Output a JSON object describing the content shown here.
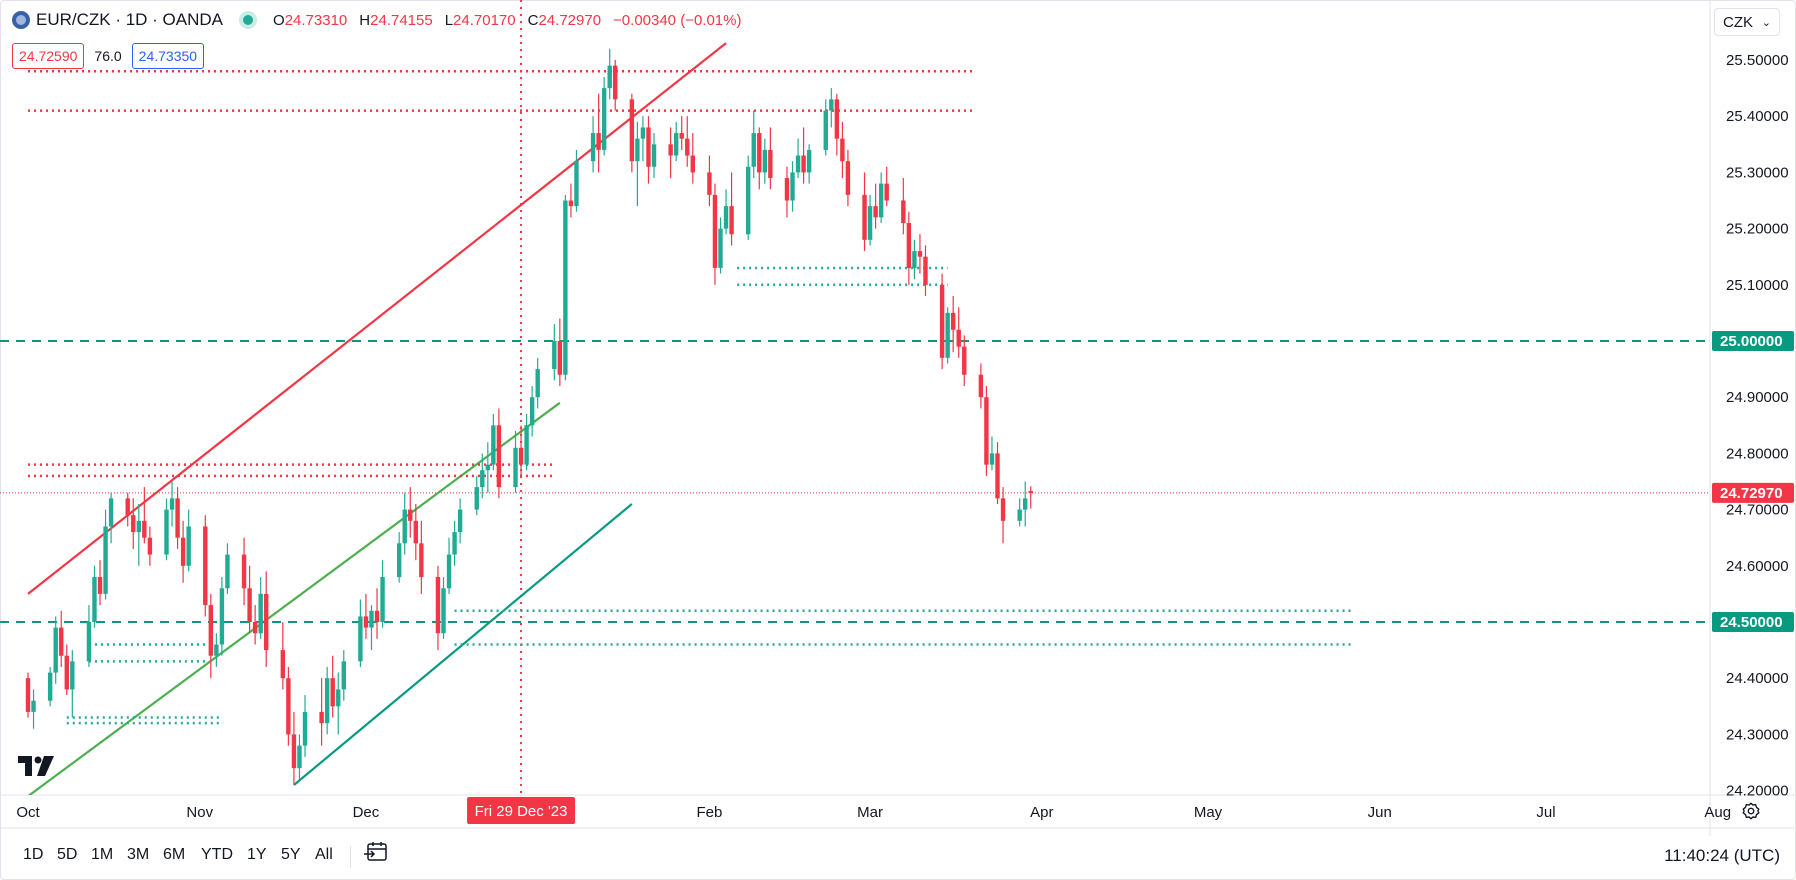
{
  "symbol": {
    "title": "EUR/CZK · 1D · OANDA",
    "icon": "globe-icon",
    "ohlc": [
      {
        "k": "O",
        "v": "24.73310"
      },
      {
        "k": "H",
        "v": "24.74155"
      },
      {
        "k": "L",
        "v": "24.70170"
      },
      {
        "k": "C",
        "v": "24.72970"
      }
    ],
    "change": "−0.00340 (−0.01%)"
  },
  "quote": {
    "bid": "24.72590",
    "spread": "76.0",
    "ask": "24.73350"
  },
  "currency": "CZK",
  "bottom_bar": {
    "ranges": [
      "1D",
      "5D",
      "1M",
      "3M",
      "6M",
      "YTD",
      "1Y",
      "5Y",
      "All"
    ],
    "time": "11:40:24 (UTC)"
  },
  "colors": {
    "up": "#22ab94",
    "down": "#f23645",
    "channel_green": "#4caf50",
    "teal": "#089981",
    "red_line": "#f23645"
  },
  "chart_data": {
    "type": "candlestick",
    "price_axis": {
      "ticks": [
        "25.50000",
        "25.40000",
        "25.30000",
        "25.20000",
        "25.10000",
        "25.00000",
        "24.90000",
        "24.80000",
        "24.70000",
        "24.60000",
        "24.50000",
        "24.40000",
        "24.30000",
        "24.20000"
      ],
      "ylim": [
        24.19,
        25.55
      ],
      "labels": [
        {
          "value": 25.0,
          "text": "25.00000",
          "color": "#089981"
        },
        {
          "value": 24.7297,
          "text": "24.72970",
          "color": "#f23645"
        },
        {
          "value": 24.5,
          "text": "24.50000",
          "color": "#089981"
        }
      ]
    },
    "time_axis": {
      "labels": [
        {
          "text": "Oct",
          "day": 0
        },
        {
          "text": "Nov",
          "day": 31
        },
        {
          "text": "Dec",
          "day": 61
        },
        {
          "text": "Feb",
          "day": 123
        },
        {
          "text": "Mar",
          "day": 152
        },
        {
          "text": "Apr",
          "day": 183
        },
        {
          "text": "May",
          "day": 213
        },
        {
          "text": "Jun",
          "day": 244
        },
        {
          "text": "Jul",
          "day": 274
        },
        {
          "text": "Aug",
          "day": 305
        }
      ],
      "crosshair_label": "Fri 29 Dec '23",
      "crosshair_day": 89
    },
    "candles": [
      [
        0,
        24.4,
        24.41,
        24.33,
        24.34
      ],
      [
        1,
        24.34,
        24.38,
        24.31,
        24.36
      ],
      [
        4,
        24.36,
        24.42,
        24.35,
        24.41
      ],
      [
        5,
        24.41,
        24.51,
        24.39,
        24.49
      ],
      [
        6,
        24.49,
        24.52,
        24.42,
        24.44
      ],
      [
        7,
        24.44,
        24.46,
        24.37,
        24.38
      ],
      [
        8,
        24.38,
        24.45,
        24.33,
        24.43
      ],
      [
        11,
        24.43,
        24.53,
        24.42,
        24.5
      ],
      [
        12,
        24.5,
        24.6,
        24.49,
        24.58
      ],
      [
        13,
        24.58,
        24.61,
        24.53,
        24.55
      ],
      [
        14,
        24.55,
        24.7,
        24.54,
        24.67
      ],
      [
        15,
        24.67,
        24.73,
        24.64,
        24.72
      ],
      [
        18,
        24.72,
        24.73,
        24.67,
        24.69
      ],
      [
        19,
        24.69,
        24.72,
        24.63,
        24.66
      ],
      [
        20,
        24.66,
        24.71,
        24.6,
        24.68
      ],
      [
        21,
        24.68,
        24.74,
        24.64,
        24.65
      ],
      [
        22,
        24.65,
        24.67,
        24.6,
        24.62
      ],
      [
        25,
        24.62,
        24.72,
        24.61,
        24.7
      ],
      [
        26,
        24.7,
        24.75,
        24.67,
        24.72
      ],
      [
        27,
        24.72,
        24.74,
        24.63,
        24.65
      ],
      [
        28,
        24.65,
        24.68,
        24.57,
        24.6
      ],
      [
        29,
        24.6,
        24.7,
        24.59,
        24.67
      ],
      [
        32,
        24.67,
        24.69,
        24.51,
        24.53
      ],
      [
        33,
        24.53,
        24.55,
        24.4,
        24.44
      ],
      [
        34,
        24.44,
        24.48,
        24.42,
        24.46
      ],
      [
        35,
        24.46,
        24.58,
        24.44,
        24.56
      ],
      [
        36,
        24.56,
        24.64,
        24.55,
        24.62
      ],
      [
        39,
        24.62,
        24.65,
        24.53,
        24.56
      ],
      [
        40,
        24.56,
        24.6,
        24.48,
        24.5
      ],
      [
        41,
        24.5,
        24.53,
        24.46,
        24.48
      ],
      [
        42,
        24.48,
        24.58,
        24.47,
        24.55
      ],
      [
        43,
        24.55,
        24.59,
        24.42,
        24.45
      ],
      [
        46,
        24.45,
        24.5,
        24.38,
        24.4
      ],
      [
        47,
        24.4,
        24.42,
        24.28,
        24.3
      ],
      [
        48,
        24.3,
        24.34,
        24.21,
        24.24
      ],
      [
        49,
        24.24,
        24.3,
        24.22,
        24.28
      ],
      [
        50,
        24.28,
        24.37,
        24.26,
        24.34
      ],
      [
        53,
        24.34,
        24.4,
        24.28,
        24.32
      ],
      [
        54,
        24.32,
        24.42,
        24.3,
        24.4
      ],
      [
        55,
        24.4,
        24.44,
        24.33,
        24.35
      ],
      [
        56,
        24.35,
        24.41,
        24.3,
        24.38
      ],
      [
        57,
        24.38,
        24.45,
        24.36,
        24.43
      ],
      [
        60,
        24.43,
        24.54,
        24.42,
        24.51
      ],
      [
        61,
        24.51,
        24.55,
        24.47,
        24.49
      ],
      [
        62,
        24.49,
        24.53,
        24.45,
        24.52
      ],
      [
        63,
        24.52,
        24.56,
        24.47,
        24.5
      ],
      [
        64,
        24.5,
        24.61,
        24.49,
        24.58
      ],
      [
        67,
        24.58,
        24.66,
        24.57,
        24.64
      ],
      [
        68,
        24.64,
        24.73,
        24.62,
        24.7
      ],
      [
        69,
        24.7,
        24.74,
        24.65,
        24.68
      ],
      [
        70,
        24.68,
        24.71,
        24.61,
        24.64
      ],
      [
        71,
        24.64,
        24.68,
        24.55,
        24.58
      ],
      [
        74,
        24.58,
        24.6,
        24.45,
        24.48
      ],
      [
        75,
        24.48,
        24.58,
        24.47,
        24.56
      ],
      [
        76,
        24.56,
        24.65,
        24.55,
        24.62
      ],
      [
        77,
        24.62,
        24.68,
        24.6,
        24.66
      ],
      [
        78,
        24.66,
        24.72,
        24.64,
        24.7
      ],
      [
        81,
        24.7,
        24.76,
        24.69,
        24.74
      ],
      [
        82,
        24.74,
        24.8,
        24.72,
        24.77
      ],
      [
        83,
        24.77,
        24.82,
        24.73,
        24.78
      ],
      [
        84,
        24.78,
        24.87,
        24.77,
        24.85
      ],
      [
        85,
        24.85,
        24.88,
        24.72,
        24.74
      ],
      [
        88,
        24.74,
        24.84,
        24.73,
        24.81
      ],
      [
        89,
        24.81,
        24.85,
        24.76,
        24.78
      ],
      [
        90,
        24.78,
        24.87,
        24.77,
        24.85
      ],
      [
        91,
        24.85,
        24.92,
        24.83,
        24.9
      ],
      [
        92,
        24.9,
        24.97,
        24.88,
        24.95
      ],
      [
        95,
        24.95,
        25.03,
        24.93,
        25.0
      ],
      [
        96,
        25.0,
        25.04,
        24.92,
        24.94
      ],
      [
        97,
        24.94,
        25.26,
        24.93,
        25.25
      ],
      [
        98,
        25.25,
        25.28,
        25.22,
        25.24
      ],
      [
        99,
        25.24,
        25.34,
        25.23,
        25.32
      ],
      [
        102,
        25.32,
        25.4,
        25.3,
        25.37
      ],
      [
        103,
        25.37,
        25.44,
        25.3,
        25.34
      ],
      [
        104,
        25.34,
        25.47,
        25.33,
        25.45
      ],
      [
        105,
        25.45,
        25.52,
        25.43,
        25.49
      ],
      [
        106,
        25.49,
        25.5,
        25.41,
        25.43
      ],
      [
        109,
        25.43,
        25.44,
        25.3,
        25.32
      ],
      [
        110,
        25.32,
        25.39,
        25.24,
        25.36
      ],
      [
        111,
        25.36,
        25.4,
        25.32,
        25.38
      ],
      [
        112,
        25.38,
        25.4,
        25.28,
        25.31
      ],
      [
        113,
        25.31,
        25.37,
        25.29,
        25.35
      ],
      [
        116,
        25.35,
        25.38,
        25.29,
        25.33
      ],
      [
        117,
        25.33,
        25.39,
        25.32,
        25.37
      ],
      [
        118,
        25.37,
        25.4,
        25.34,
        25.36
      ],
      [
        119,
        25.36,
        25.4,
        25.31,
        25.33
      ],
      [
        120,
        25.33,
        25.37,
        25.28,
        25.3
      ],
      [
        123,
        25.3,
        25.33,
        25.24,
        25.26
      ],
      [
        124,
        25.26,
        25.28,
        25.1,
        25.13
      ],
      [
        125,
        25.13,
        25.22,
        25.12,
        25.2
      ],
      [
        126,
        25.2,
        25.27,
        25.19,
        25.24
      ],
      [
        127,
        25.24,
        25.3,
        25.17,
        25.19
      ],
      [
        130,
        25.19,
        25.33,
        25.18,
        25.31
      ],
      [
        131,
        25.31,
        25.41,
        25.29,
        25.37
      ],
      [
        132,
        25.37,
        25.38,
        25.27,
        25.3
      ],
      [
        133,
        25.3,
        25.36,
        25.28,
        25.34
      ],
      [
        134,
        25.34,
        25.38,
        25.27,
        25.29
      ],
      [
        137,
        25.29,
        25.31,
        25.22,
        25.25
      ],
      [
        138,
        25.25,
        25.32,
        25.23,
        25.3
      ],
      [
        139,
        25.3,
        25.36,
        25.29,
        25.33
      ],
      [
        140,
        25.33,
        25.38,
        25.28,
        25.3
      ],
      [
        141,
        25.3,
        25.35,
        25.28,
        25.34
      ],
      [
        144,
        25.34,
        25.43,
        25.33,
        25.41
      ],
      [
        145,
        25.41,
        25.45,
        25.38,
        25.43
      ],
      [
        146,
        25.43,
        25.44,
        25.33,
        25.36
      ],
      [
        147,
        25.36,
        25.39,
        25.29,
        25.32
      ],
      [
        148,
        25.32,
        25.34,
        25.24,
        25.26
      ],
      [
        151,
        25.26,
        25.3,
        25.16,
        25.18
      ],
      [
        152,
        25.18,
        25.26,
        25.17,
        25.24
      ],
      [
        153,
        25.24,
        25.28,
        25.2,
        25.22
      ],
      [
        154,
        25.22,
        25.3,
        25.21,
        25.28
      ],
      [
        155,
        25.28,
        25.31,
        25.24,
        25.25
      ],
      [
        158,
        25.25,
        25.29,
        25.19,
        25.21
      ],
      [
        159,
        25.21,
        25.23,
        25.1,
        25.13
      ],
      [
        160,
        25.13,
        25.18,
        25.11,
        25.16
      ],
      [
        161,
        25.16,
        25.19,
        25.12,
        25.15
      ],
      [
        162,
        25.15,
        25.17,
        25.08,
        25.1
      ],
      [
        165,
        25.1,
        25.12,
        24.95,
        24.97
      ],
      [
        166,
        24.97,
        25.06,
        24.96,
        25.05
      ],
      [
        167,
        25.05,
        25.08,
        24.98,
        25.02
      ],
      [
        168,
        25.02,
        25.06,
        24.97,
        24.99
      ],
      [
        169,
        24.99,
        25.01,
        24.92,
        24.94
      ],
      [
        172,
        24.94,
        24.96,
        24.88,
        24.9
      ],
      [
        173,
        24.9,
        24.92,
        24.76,
        24.78
      ],
      [
        174,
        24.78,
        24.83,
        24.77,
        24.8
      ],
      [
        175,
        24.8,
        24.82,
        24.71,
        24.72
      ],
      [
        176,
        24.72,
        24.74,
        24.64,
        24.68
      ],
      [
        179,
        24.68,
        24.72,
        24.67,
        24.7
      ],
      [
        180,
        24.7,
        24.75,
        24.67,
        24.72
      ],
      [
        181,
        24.7331,
        24.74155,
        24.7017,
        24.7297
      ]
    ],
    "lines": [
      {
        "type": "trendline",
        "color": "#f23645",
        "from": [
          0,
          24.55
        ],
        "to": [
          126,
          25.53
        ]
      },
      {
        "type": "trendline",
        "color": "#4caf50",
        "from": [
          0,
          24.19
        ],
        "to": [
          96,
          24.89
        ]
      },
      {
        "type": "trendline",
        "color": "#089981",
        "from": [
          48,
          24.21
        ],
        "to": [
          109,
          24.71
        ]
      },
      {
        "type": "horizontal",
        "style": "dashed",
        "color": "#089981",
        "value": 25.0
      },
      {
        "type": "horizontal",
        "style": "dashed",
        "color": "#089981",
        "value": 24.5
      },
      {
        "type": "level",
        "style": "dotted",
        "color": "#f23645",
        "value": 25.48,
        "from": 0,
        "to": 171
      },
      {
        "type": "level",
        "style": "dotted",
        "color": "#f23645",
        "value": 25.41,
        "from": 0,
        "to": 171
      },
      {
        "type": "level",
        "style": "dotted",
        "color": "#f23645",
        "value": 24.78,
        "from": 0,
        "to": 95
      },
      {
        "type": "level",
        "style": "dotted",
        "color": "#f23645",
        "value": 24.76,
        "from": 0,
        "to": 95
      },
      {
        "type": "level",
        "style": "dotted",
        "color": "#22ab94",
        "value": 25.13,
        "from": 128,
        "to": 166
      },
      {
        "type": "level",
        "style": "dotted",
        "color": "#22ab94",
        "value": 25.1,
        "from": 128,
        "to": 166
      },
      {
        "type": "level",
        "style": "dotted",
        "color": "#22ab94",
        "value": 24.52,
        "from": 77,
        "to": 239
      },
      {
        "type": "level",
        "style": "dotted",
        "color": "#22ab94",
        "value": 24.46,
        "from": 77,
        "to": 239
      },
      {
        "type": "level",
        "style": "dotted",
        "color": "#22ab94",
        "value": 24.46,
        "from": 11,
        "to": 32
      },
      {
        "type": "level",
        "style": "dotted",
        "color": "#22ab94",
        "value": 24.43,
        "from": 11,
        "to": 32
      },
      {
        "type": "level",
        "style": "dotted",
        "color": "#22ab94",
        "value": 24.33,
        "from": 7,
        "to": 35
      },
      {
        "type": "level",
        "style": "dotted",
        "color": "#22ab94",
        "value": 24.32,
        "from": 7,
        "to": 35
      }
    ],
    "last_price": 24.7297
  }
}
